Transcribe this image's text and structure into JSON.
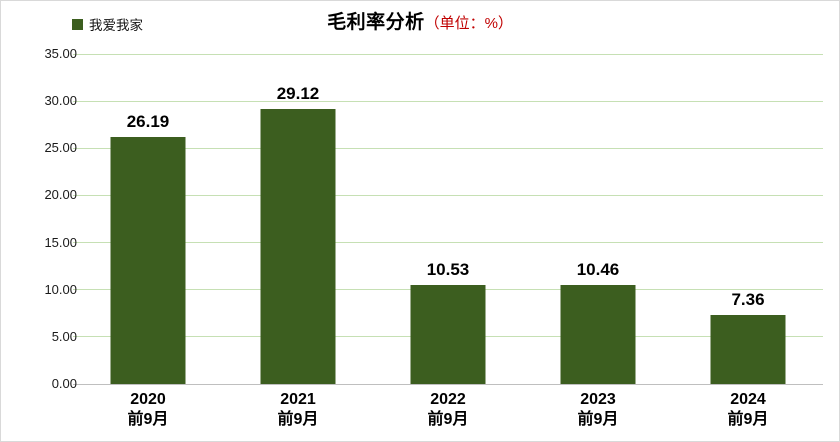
{
  "title": {
    "main": "毛利率分析",
    "unit": "（单位：%）",
    "unit_color": "#c00000"
  },
  "legend": {
    "label": "我爱我家",
    "swatch_color": "#3c5e1f"
  },
  "chart_data": {
    "type": "bar",
    "title": "毛利率分析（单位：%）",
    "series_name": "我爱我家",
    "categories": [
      "2020\n前9月",
      "2021\n前9月",
      "2022\n前9月",
      "2023\n前9月",
      "2024\n前9月"
    ],
    "values": [
      26.19,
      29.12,
      10.53,
      10.46,
      7.36
    ],
    "data_labels": [
      "26.19",
      "29.12",
      "10.53",
      "10.46",
      "7.36"
    ],
    "ylim": [
      0,
      35
    ],
    "ytick_step": 5,
    "ytick_labels": [
      "0.00",
      "5.00",
      "10.00",
      "15.00",
      "20.00",
      "25.00",
      "30.00",
      "35.00"
    ],
    "grid": true,
    "legend_position": "top-left",
    "bar_color": "#3c5e1f",
    "gridline_color": "#c6e0b4",
    "axis_line_color": "#bfbfbf",
    "label_color": "#000000"
  }
}
